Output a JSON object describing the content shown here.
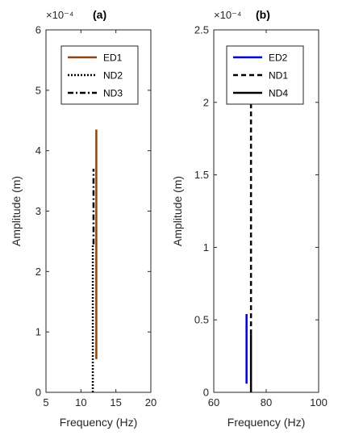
{
  "chart_data": [
    {
      "type": "line",
      "title": "(a)",
      "xlabel": "Frequency (Hz)",
      "ylabel": "Amplitude (m)",
      "exponent": "×10⁻⁴",
      "xlim": [
        5,
        20
      ],
      "ylim": [
        0,
        6
      ],
      "xticks": [
        "5",
        "10",
        "15",
        "20"
      ],
      "yticks": [
        "0",
        "1",
        "2",
        "3",
        "4",
        "5",
        "6"
      ],
      "legend_position": "top-right",
      "series": [
        {
          "name": "ED1",
          "style": "solid",
          "color": "#8B4513",
          "x": [
            12.2,
            12.2
          ],
          "y": [
            0.55,
            4.35
          ]
        },
        {
          "name": "ND2",
          "style": "dotted",
          "color": "#000000",
          "x": [
            11.7,
            11.7
          ],
          "y": [
            0.0,
            2.45
          ]
        },
        {
          "name": "ND3",
          "style": "dashdot",
          "color": "#000000",
          "x": [
            11.8,
            11.8
          ],
          "y": [
            2.45,
            3.7
          ]
        }
      ]
    },
    {
      "type": "line",
      "title": "(b)",
      "xlabel": "Frequency (Hz)",
      "ylabel": "Amplitude (m)",
      "exponent": "×10⁻⁴",
      "xlim": [
        60,
        100
      ],
      "ylim": [
        0,
        2.5
      ],
      "xticks": [
        "60",
        "80",
        "100"
      ],
      "yticks": [
        "0",
        "0.5",
        "1",
        "1.5",
        "2",
        "2.5"
      ],
      "legend_position": "top-right",
      "series": [
        {
          "name": "ED2",
          "style": "solid",
          "color": "#0000CD",
          "x": [
            72.5,
            72.5
          ],
          "y": [
            0.06,
            0.54
          ]
        },
        {
          "name": "ND1",
          "style": "dashed",
          "color": "#000000",
          "x": [
            74.2,
            74.2
          ],
          "y": [
            0.4,
            2.02
          ]
        },
        {
          "name": "ND4",
          "style": "solid",
          "color": "#000000",
          "x": [
            74.2,
            74.2
          ],
          "y": [
            0.0,
            0.4
          ]
        }
      ]
    }
  ]
}
